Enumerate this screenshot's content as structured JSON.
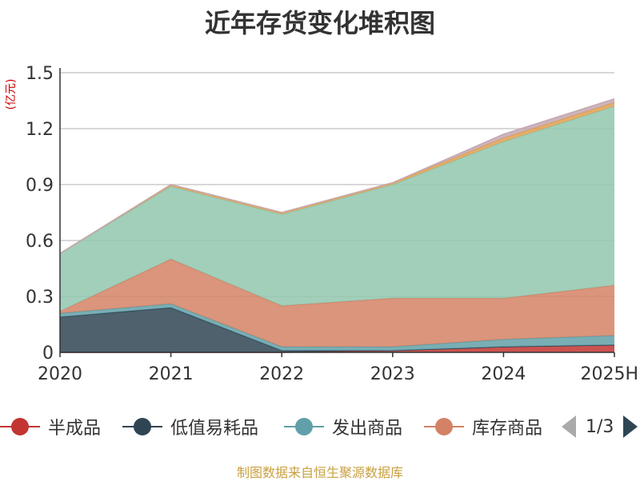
{
  "colors": {
    "title": "#333333",
    "axis_unit": "#cc0000",
    "source": "#c8a040",
    "pager_active": "#2f4554",
    "pager_inactive": "#aaaaaa"
  },
  "chart_data": {
    "type": "area",
    "stacked": true,
    "title": "近年存货变化堆积图",
    "ylabel": "(亿元)",
    "categories": [
      "2020",
      "2021",
      "2022",
      "2023",
      "2024",
      "2025H"
    ],
    "ylim": [
      0,
      1.5
    ],
    "yticks": [
      "0",
      "0.3",
      "0.6",
      "0.9",
      "1.2",
      "1.5"
    ],
    "grid": true,
    "legend_position": "bottom",
    "series": [
      {
        "name": "半成品",
        "color": "#c23531",
        "values": [
          0.0,
          0.0,
          0.0,
          0.01,
          0.03,
          0.04
        ]
      },
      {
        "name": "低值易耗品",
        "color": "#2f4554",
        "values": [
          0.19,
          0.24,
          0.01,
          0.0,
          0.0,
          0.0
        ]
      },
      {
        "name": "发出商品",
        "color": "#61a0a8",
        "values": [
          0.02,
          0.02,
          0.02,
          0.02,
          0.04,
          0.05
        ]
      },
      {
        "name": "库存商品",
        "color": "#d48265",
        "values": [
          0.01,
          0.24,
          0.22,
          0.26,
          0.22,
          0.27
        ]
      },
      {
        "color": "#91c7ae",
        "values": [
          0.31,
          0.39,
          0.49,
          0.61,
          0.84,
          0.96
        ]
      },
      {
        "color": "#e0a050",
        "values": [
          0.0,
          0.01,
          0.01,
          0.01,
          0.02,
          0.02
        ]
      },
      {
        "color": "#c4a7b0",
        "values": [
          0.0,
          0.0,
          0.0,
          0.0,
          0.02,
          0.02
        ]
      }
    ]
  },
  "legend": {
    "items": [
      {
        "label": "半成品",
        "color": "#c23531"
      },
      {
        "label": "低值易耗品",
        "color": "#2f4554"
      },
      {
        "label": "发出商品",
        "color": "#61a0a8"
      },
      {
        "label": "库存商品",
        "color": "#d48265"
      }
    ],
    "page_text": "1/3"
  },
  "source": "制图数据来自恒生聚源数据库"
}
